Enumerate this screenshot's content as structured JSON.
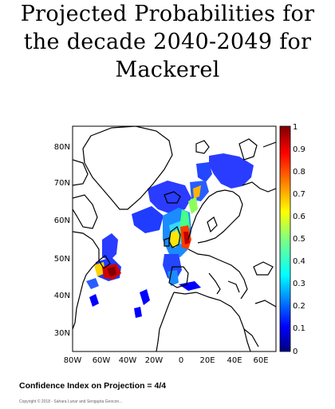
{
  "title": {
    "line1": "Projected Probabilities for",
    "line2": "the decade 2040-2049 for",
    "line3": "Mackerel"
  },
  "map": {
    "lat_ticks": [
      "80N",
      "70N",
      "60N",
      "50N",
      "40N",
      "30N"
    ],
    "lon_ticks": [
      "80W",
      "60W",
      "40W",
      "20W",
      "0",
      "20E",
      "40E",
      "60E"
    ],
    "colorbar": {
      "ticks": [
        "1",
        "0.9",
        "0.8",
        "0.7",
        "0.6",
        "0.5",
        "0.4",
        "0.3",
        "0.2",
        "0.1",
        "0"
      ],
      "range": [
        0,
        1
      ],
      "colormap": [
        "#00007f",
        "#0000ff",
        "#0080ff",
        "#00ffff",
        "#80ff80",
        "#ffff00",
        "#ff8000",
        "#ff0000",
        "#7f0000"
      ]
    }
  },
  "footer": {
    "confidence_label": "Confidence Index on Projection =",
    "confidence_value": "4/4",
    "copyright": "Copyright © 2018 - Sahara Lunar and Sengupta Geocon..."
  }
}
